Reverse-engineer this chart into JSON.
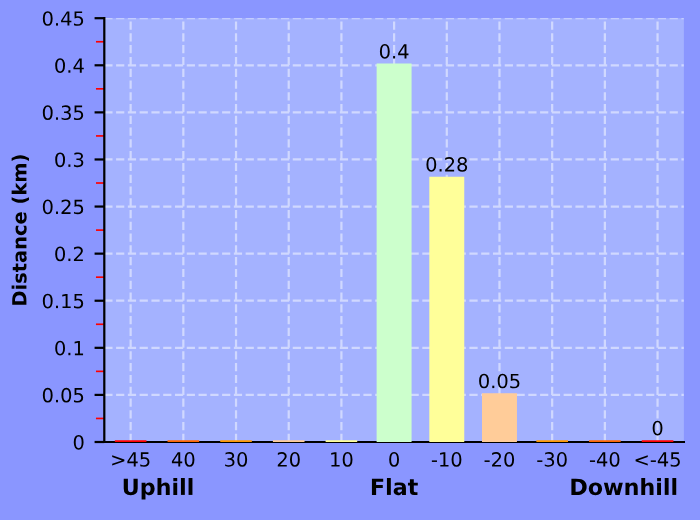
{
  "chart_data": {
    "type": "bar",
    "ylabel": "Distance (km)",
    "categories": [
      ">45",
      "40",
      "30",
      "20",
      "10",
      "0",
      "-10",
      "-20",
      "-30",
      "-40",
      "<-45"
    ],
    "values": [
      0,
      0,
      0,
      0,
      0,
      0.4,
      0.28,
      0.05,
      0,
      0,
      0
    ],
    "colors": [
      "#ff0000",
      "#ff6600",
      "#ff9900",
      "#ffcc99",
      "#ffff99",
      "#ccffcc",
      "#ffff99",
      "#ffcc99",
      "#ff9900",
      "#ff6600",
      "#ff0000"
    ],
    "value_labels": [
      null,
      null,
      null,
      null,
      null,
      "0.4",
      "0.28",
      "0.05",
      null,
      null,
      "0"
    ],
    "ylim": [
      0,
      0.45
    ],
    "yticks": [
      0,
      0.05,
      0.1,
      0.15,
      0.2,
      0.25,
      0.3,
      0.35,
      0.4,
      0.45
    ],
    "grid": true,
    "annotations": [
      "Uphill",
      "Flat",
      "Downhill"
    ]
  }
}
